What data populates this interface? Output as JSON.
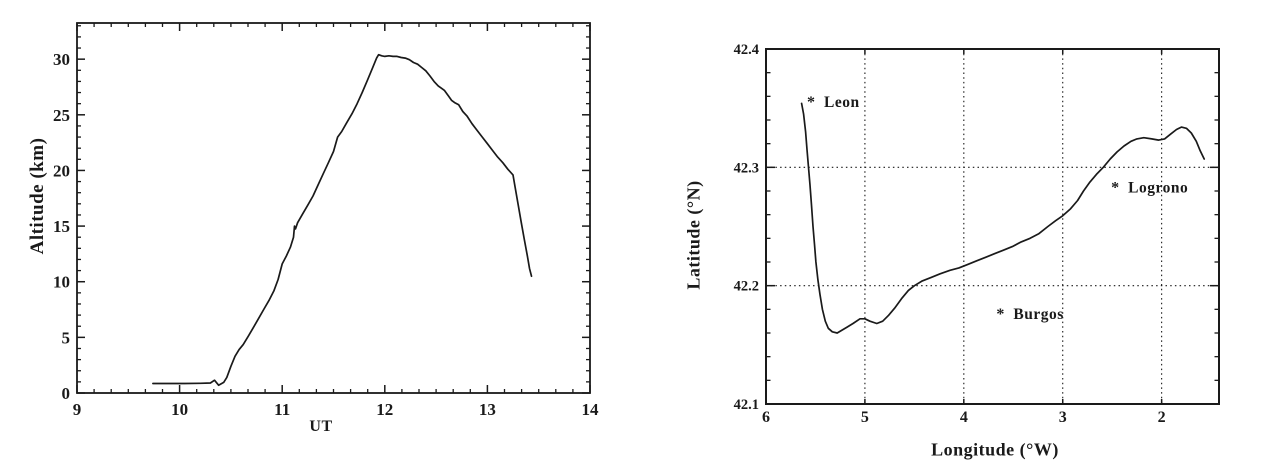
{
  "page": {
    "background": "#ffffff",
    "ink": "#1a1a1a"
  },
  "chart_data": [
    {
      "id": "balloon-altitude-profile",
      "type": "line",
      "title": "",
      "xlabel": "UT",
      "ylabel": "Altitude (km)",
      "xlim": [
        9,
        14
      ],
      "ylim": [
        0,
        33.25
      ],
      "grid": null,
      "x_ticks": {
        "major": [
          9,
          10,
          11,
          12,
          13,
          14
        ],
        "labels": [
          "9",
          "10",
          "11",
          "12",
          "13",
          "14"
        ],
        "minor_step": 0.166667
      },
      "y_ticks": {
        "major": [
          0,
          5,
          10,
          15,
          20,
          25,
          30
        ],
        "labels": [
          "0",
          "5",
          "10",
          "15",
          "20",
          "25",
          "30"
        ],
        "minor_step": 1
      },
      "series": [
        {
          "name": "balloon altitude vs universal time",
          "points": [
            [
              9.74,
              0.85
            ],
            [
              9.9,
              0.85
            ],
            [
              10.05,
              0.85
            ],
            [
              10.2,
              0.87
            ],
            [
              10.3,
              0.9
            ],
            [
              10.34,
              1.15
            ],
            [
              10.38,
              0.7
            ],
            [
              10.43,
              0.95
            ],
            [
              10.46,
              1.4
            ],
            [
              10.5,
              2.4
            ],
            [
              10.54,
              3.3
            ],
            [
              10.58,
              3.9
            ],
            [
              10.62,
              4.35
            ],
            [
              10.67,
              5.1
            ],
            [
              10.72,
              5.9
            ],
            [
              10.77,
              6.7
            ],
            [
              10.82,
              7.5
            ],
            [
              10.87,
              8.3
            ],
            [
              10.92,
              9.2
            ],
            [
              10.96,
              10.2
            ],
            [
              11.0,
              11.6
            ],
            [
              11.04,
              12.3
            ],
            [
              11.08,
              13.1
            ],
            [
              11.11,
              14.0
            ],
            [
              11.12,
              15.0
            ],
            [
              11.13,
              14.75
            ],
            [
              11.15,
              15.3
            ],
            [
              11.2,
              16.1
            ],
            [
              11.25,
              16.9
            ],
            [
              11.3,
              17.7
            ],
            [
              11.35,
              18.7
            ],
            [
              11.4,
              19.7
            ],
            [
              11.45,
              20.7
            ],
            [
              11.5,
              21.7
            ],
            [
              11.54,
              23.0
            ],
            [
              11.58,
              23.5
            ],
            [
              11.63,
              24.3
            ],
            [
              11.68,
              25.1
            ],
            [
              11.73,
              26.0
            ],
            [
              11.78,
              27.0
            ],
            [
              11.83,
              28.1
            ],
            [
              11.88,
              29.2
            ],
            [
              11.92,
              30.1
            ],
            [
              11.94,
              30.4
            ],
            [
              11.97,
              30.3
            ],
            [
              12.0,
              30.25
            ],
            [
              12.04,
              30.3
            ],
            [
              12.08,
              30.25
            ],
            [
              12.12,
              30.25
            ],
            [
              12.16,
              30.15
            ],
            [
              12.2,
              30.1
            ],
            [
              12.24,
              29.95
            ],
            [
              12.28,
              29.7
            ],
            [
              12.32,
              29.55
            ],
            [
              12.36,
              29.25
            ],
            [
              12.4,
              28.95
            ],
            [
              12.44,
              28.5
            ],
            [
              12.48,
              28.0
            ],
            [
              12.52,
              27.6
            ],
            [
              12.55,
              27.4
            ],
            [
              12.58,
              27.2
            ],
            [
              12.62,
              26.7
            ],
            [
              12.65,
              26.3
            ],
            [
              12.68,
              26.1
            ],
            [
              12.72,
              25.9
            ],
            [
              12.76,
              25.3
            ],
            [
              12.8,
              24.9
            ],
            [
              12.85,
              24.2
            ],
            [
              12.9,
              23.6
            ],
            [
              12.95,
              23.0
            ],
            [
              13.0,
              22.4
            ],
            [
              13.05,
              21.8
            ],
            [
              13.1,
              21.2
            ],
            [
              13.15,
              20.7
            ],
            [
              13.2,
              20.1
            ],
            [
              13.25,
              19.6
            ],
            [
              13.27,
              18.5
            ],
            [
              13.3,
              16.9
            ],
            [
              13.33,
              15.3
            ],
            [
              13.36,
              13.8
            ],
            [
              13.39,
              12.3
            ],
            [
              13.41,
              11.2
            ],
            [
              13.43,
              10.5
            ]
          ]
        }
      ],
      "annotations": []
    },
    {
      "id": "balloon-trajectory-map",
      "type": "line",
      "title": "",
      "xlabel": "Longitude (°W)",
      "ylabel": "Latitude (°N)",
      "xlim": [
        6,
        1.42
      ],
      "ylim": [
        42.1,
        42.4
      ],
      "grid": {
        "x": [
          5,
          4,
          3,
          2
        ],
        "y": [
          42.2,
          42.3
        ]
      },
      "x_ticks": {
        "major": [
          6,
          5,
          4,
          3,
          2
        ],
        "labels": [
          "6",
          "5",
          "4",
          "3",
          "2"
        ],
        "minor_step": null
      },
      "y_ticks": {
        "major": [
          42.1,
          42.2,
          42.3,
          42.4
        ],
        "labels": [
          "42.1",
          "42.2",
          "42.3",
          "42.4"
        ],
        "minor_step": 0.02
      },
      "series": [
        {
          "name": "balloon trajectory longitude-latitude",
          "points": [
            [
              5.64,
              42.354
            ],
            [
              5.62,
              42.345
            ],
            [
              5.6,
              42.33
            ],
            [
              5.585,
              42.315
            ],
            [
              5.57,
              42.3
            ],
            [
              5.555,
              42.285
            ],
            [
              5.54,
              42.268
            ],
            [
              5.525,
              42.25
            ],
            [
              5.51,
              42.235
            ],
            [
              5.495,
              42.22
            ],
            [
              5.475,
              42.205
            ],
            [
              5.455,
              42.193
            ],
            [
              5.43,
              42.18
            ],
            [
              5.4,
              42.17
            ],
            [
              5.37,
              42.164
            ],
            [
              5.33,
              42.161
            ],
            [
              5.28,
              42.16
            ],
            [
              5.24,
              42.162
            ],
            [
              5.18,
              42.165
            ],
            [
              5.12,
              42.168
            ],
            [
              5.05,
              42.172
            ],
            [
              5.0,
              42.172
            ],
            [
              4.95,
              42.17
            ],
            [
              4.88,
              42.168
            ],
            [
              4.82,
              42.17
            ],
            [
              4.76,
              42.175
            ],
            [
              4.7,
              42.181
            ],
            [
              4.63,
              42.189
            ],
            [
              4.56,
              42.196
            ],
            [
              4.5,
              42.2
            ],
            [
              4.42,
              42.204
            ],
            [
              4.33,
              42.207
            ],
            [
              4.24,
              42.21
            ],
            [
              4.14,
              42.213
            ],
            [
              4.05,
              42.215
            ],
            [
              3.96,
              42.218
            ],
            [
              3.87,
              42.221
            ],
            [
              3.78,
              42.224
            ],
            [
              3.69,
              42.227
            ],
            [
              3.6,
              42.23
            ],
            [
              3.51,
              42.233
            ],
            [
              3.42,
              42.237
            ],
            [
              3.33,
              42.24
            ],
            [
              3.24,
              42.244
            ],
            [
              3.15,
              42.25
            ],
            [
              3.07,
              42.255
            ],
            [
              3.0,
              42.259
            ],
            [
              2.92,
              42.265
            ],
            [
              2.85,
              42.272
            ],
            [
              2.79,
              42.28
            ],
            [
              2.73,
              42.287
            ],
            [
              2.66,
              42.294
            ],
            [
              2.59,
              42.3
            ],
            [
              2.52,
              42.307
            ],
            [
              2.45,
              42.313
            ],
            [
              2.38,
              42.318
            ],
            [
              2.31,
              42.322
            ],
            [
              2.25,
              42.324
            ],
            [
              2.18,
              42.325
            ],
            [
              2.1,
              42.324
            ],
            [
              2.03,
              42.323
            ],
            [
              1.97,
              42.324
            ],
            [
              1.91,
              42.328
            ],
            [
              1.85,
              42.332
            ],
            [
              1.8,
              42.334
            ],
            [
              1.75,
              42.333
            ],
            [
              1.7,
              42.329
            ],
            [
              1.65,
              42.322
            ],
            [
              1.61,
              42.314
            ],
            [
              1.57,
              42.307
            ]
          ]
        }
      ],
      "annotations": [
        {
          "marker": "*",
          "label": "Leon",
          "x": 5.545,
          "y": 42.356
        },
        {
          "marker": "*",
          "label": "Burgos",
          "x": 3.63,
          "y": 42.177
        },
        {
          "marker": "*",
          "label": "Logrono",
          "x": 2.47,
          "y": 42.284
        }
      ]
    }
  ]
}
